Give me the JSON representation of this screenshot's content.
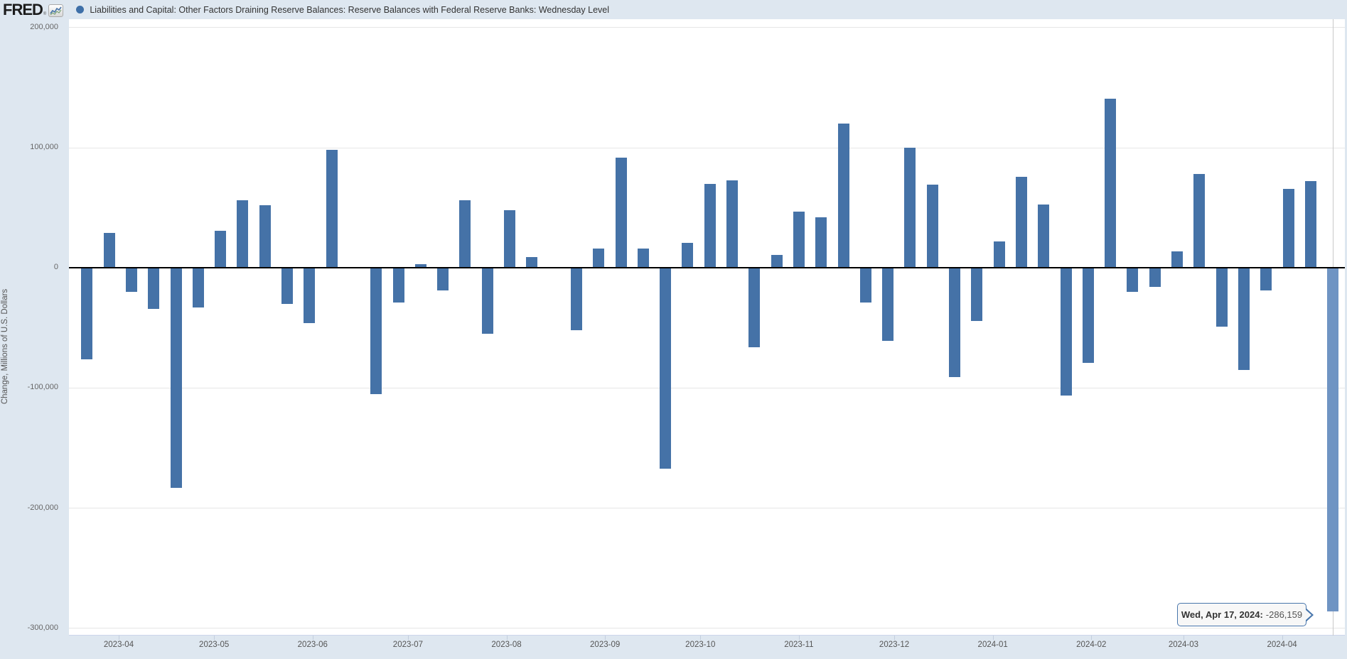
{
  "header": {
    "logo_text": "FRED",
    "registered_mark": "®",
    "legend_marker_color": "#3e6fa8",
    "series_title": "Liabilities and Capital: Other Factors Draining Reserve Balances: Reserve Balances with Federal Reserve Banks: Wednesday Level"
  },
  "chart_data": {
    "type": "bar",
    "title": "Liabilities and Capital: Other Factors Draining Reserve Balances: Reserve Balances with Federal Reserve Banks: Wednesday Level",
    "xlabel": "",
    "ylabel": "Change, Millions of U.S. Dollars",
    "ylim": [
      -306000,
      207000
    ],
    "grid": "horizontal",
    "legend_position": "top",
    "bar_color": "#4572a7",
    "highlight_color": "#6f94c3",
    "crosshair_color": "#c8c8c8",
    "highlighted_index": 56,
    "y_ticks": [
      {
        "value": 200000,
        "label": "200,000"
      },
      {
        "value": 100000,
        "label": "100,000"
      },
      {
        "value": 0,
        "label": "0"
      },
      {
        "value": -100000,
        "label": "-100,000"
      },
      {
        "value": -200000,
        "label": "-200,000"
      },
      {
        "value": -300000,
        "label": "-300,000"
      }
    ],
    "x_ticks": [
      {
        "date": "2023-04-01",
        "label": "2023-04"
      },
      {
        "date": "2023-05-01",
        "label": "2023-05"
      },
      {
        "date": "2023-06-01",
        "label": "2023-06"
      },
      {
        "date": "2023-07-01",
        "label": "2023-07"
      },
      {
        "date": "2023-08-01",
        "label": "2023-08"
      },
      {
        "date": "2023-09-01",
        "label": "2023-09"
      },
      {
        "date": "2023-10-01",
        "label": "2023-10"
      },
      {
        "date": "2023-11-01",
        "label": "2023-11"
      },
      {
        "date": "2023-12-01",
        "label": "2023-12"
      },
      {
        "date": "2024-01-01",
        "label": "2024-01"
      },
      {
        "date": "2024-02-01",
        "label": "2024-02"
      },
      {
        "date": "2024-03-01",
        "label": "2024-03"
      },
      {
        "date": "2024-04-01",
        "label": "2024-04"
      }
    ],
    "x": [
      "2023-03-22",
      "2023-03-29",
      "2023-04-05",
      "2023-04-12",
      "2023-04-19",
      "2023-04-26",
      "2023-05-03",
      "2023-05-10",
      "2023-05-17",
      "2023-05-24",
      "2023-05-31",
      "2023-06-07",
      "2023-06-14",
      "2023-06-21",
      "2023-06-28",
      "2023-07-05",
      "2023-07-12",
      "2023-07-19",
      "2023-07-26",
      "2023-08-02",
      "2023-08-09",
      "2023-08-16",
      "2023-08-23",
      "2023-08-30",
      "2023-09-06",
      "2023-09-13",
      "2023-09-20",
      "2023-09-27",
      "2023-10-04",
      "2023-10-11",
      "2023-10-18",
      "2023-10-25",
      "2023-11-01",
      "2023-11-08",
      "2023-11-15",
      "2023-11-22",
      "2023-11-29",
      "2023-12-06",
      "2023-12-13",
      "2023-12-20",
      "2023-12-27",
      "2024-01-03",
      "2024-01-10",
      "2024-01-17",
      "2024-01-24",
      "2024-01-31",
      "2024-02-07",
      "2024-02-14",
      "2024-02-21",
      "2024-02-28",
      "2024-03-06",
      "2024-03-13",
      "2024-03-20",
      "2024-03-27",
      "2024-04-03",
      "2024-04-10",
      "2024-04-17"
    ],
    "values": [
      -76000,
      29000,
      -20000,
      -34000,
      -183000,
      -33000,
      31000,
      56000,
      52000,
      -30000,
      -46000,
      98000,
      400,
      -105000,
      -29000,
      3000,
      -19000,
      56000,
      -55000,
      48000,
      9000,
      -600,
      -52000,
      16000,
      92000,
      16000,
      -167000,
      21000,
      70000,
      73000,
      -66000,
      11000,
      47000,
      42000,
      120000,
      -29000,
      -61000,
      100000,
      69000,
      -91000,
      -44000,
      22000,
      76000,
      53000,
      -106000,
      -79000,
      141000,
      -20000,
      -16000,
      14000,
      78000,
      -49000,
      -85000,
      -19000,
      66000,
      72000,
      -286159
    ]
  },
  "tooltip": {
    "date_label": "Wed, Apr 17, 2024:",
    "value_label": "-286,159"
  }
}
